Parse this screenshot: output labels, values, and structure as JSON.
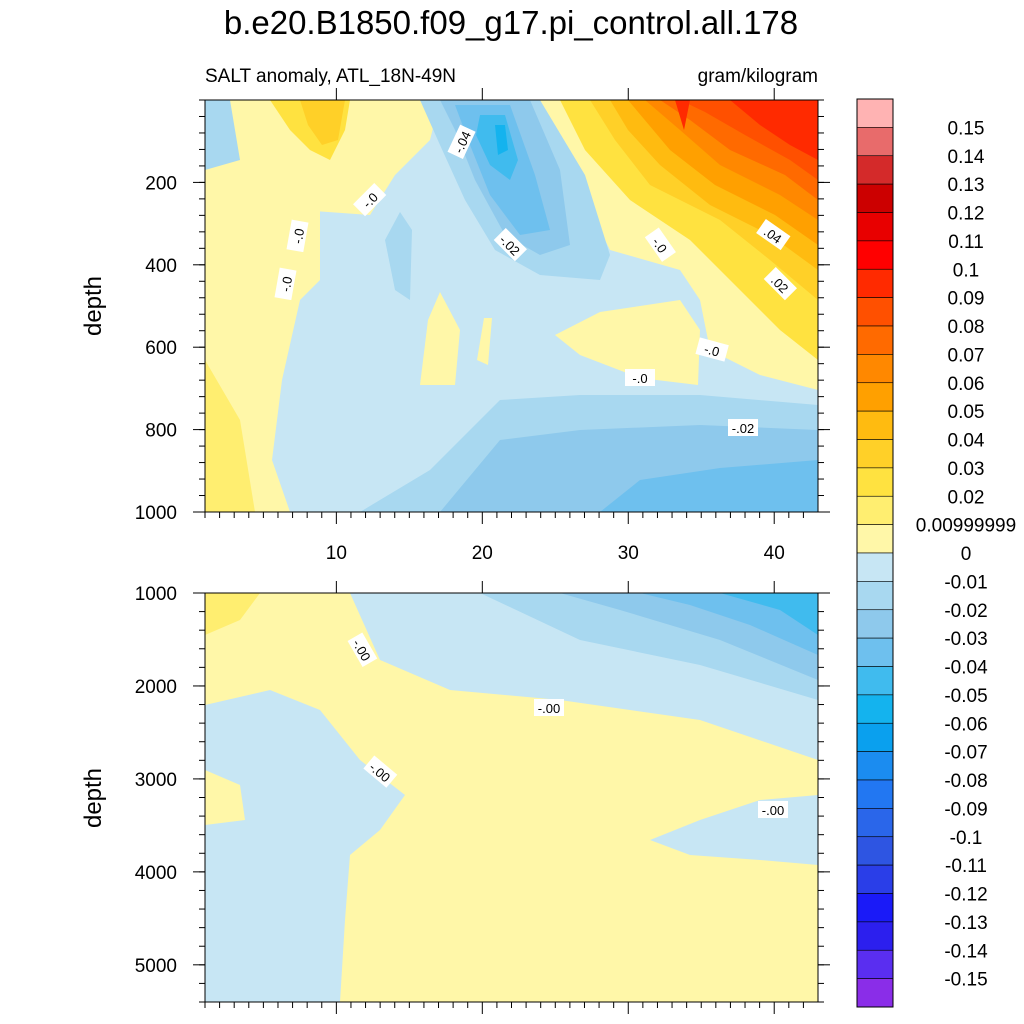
{
  "title": "b.e20.B1850.f09_g17.pi_control.all.178",
  "chart_data": {
    "type": "contour",
    "left_subtitle": "SALT anomaly, ATL_18N-49N",
    "right_subtitle": "gram/kilogram",
    "ylabel": "depth",
    "x_ticks": [
      "10",
      "20",
      "30",
      "40"
    ],
    "panels": [
      {
        "name": "upper",
        "xlim": [
          1,
          43
        ],
        "ylim": [
          0,
          1000
        ],
        "y_reversed": true,
        "y_ticks": [
          "200",
          "400",
          "600",
          "800",
          "1000"
        ],
        "contour_labels": [
          "-.04",
          "-.0",
          "-.0",
          "-.0",
          "-.02",
          "-.0",
          ".04",
          ".02",
          "-.0",
          "-.0",
          "-.02"
        ]
      },
      {
        "name": "lower",
        "xlim": [
          1,
          43
        ],
        "ylim": [
          1000,
          5400
        ],
        "y_reversed": true,
        "y_ticks": [
          "1000",
          "2000",
          "3000",
          "4000",
          "5000"
        ],
        "contour_labels": [
          "-.00",
          "-.00",
          "-.00",
          "-.00"
        ]
      }
    ],
    "colorbar": {
      "labels": [
        "0.15",
        "0.14",
        "0.13",
        "0.12",
        "0.11",
        "0.1",
        "0.09",
        "0.08",
        "0.07",
        "0.06",
        "0.05",
        "0.04",
        "0.03",
        "0.02",
        "0.00999999",
        "0",
        "-0.01",
        "-0.02",
        "-0.03",
        "-0.04",
        "-0.05",
        "-0.06",
        "-0.07",
        "-0.08",
        "-0.09",
        "-0.1",
        "-0.11",
        "-0.12",
        "-0.13",
        "-0.14",
        "-0.15"
      ],
      "colors": [
        "#ffb3b3",
        "#e86b6b",
        "#d42a2a",
        "#cc0000",
        "#e80000",
        "#ff0000",
        "#ff2a00",
        "#ff5000",
        "#ff6a00",
        "#ff8800",
        "#ffa000",
        "#ffbb10",
        "#ffd028",
        "#ffe240",
        "#ffee70",
        "#fff7a8",
        "#c7e6f4",
        "#a8d8f0",
        "#8ec9ec",
        "#6ec0ee",
        "#40bbee",
        "#14b3ee",
        "#0aa0ee",
        "#1b8cf0",
        "#2277f2",
        "#2a66ea",
        "#2e55e2",
        "#2a3ee8",
        "#1a1af8",
        "#2c1fee",
        "#5a2ef0",
        "#8a2de8"
      ]
    }
  }
}
